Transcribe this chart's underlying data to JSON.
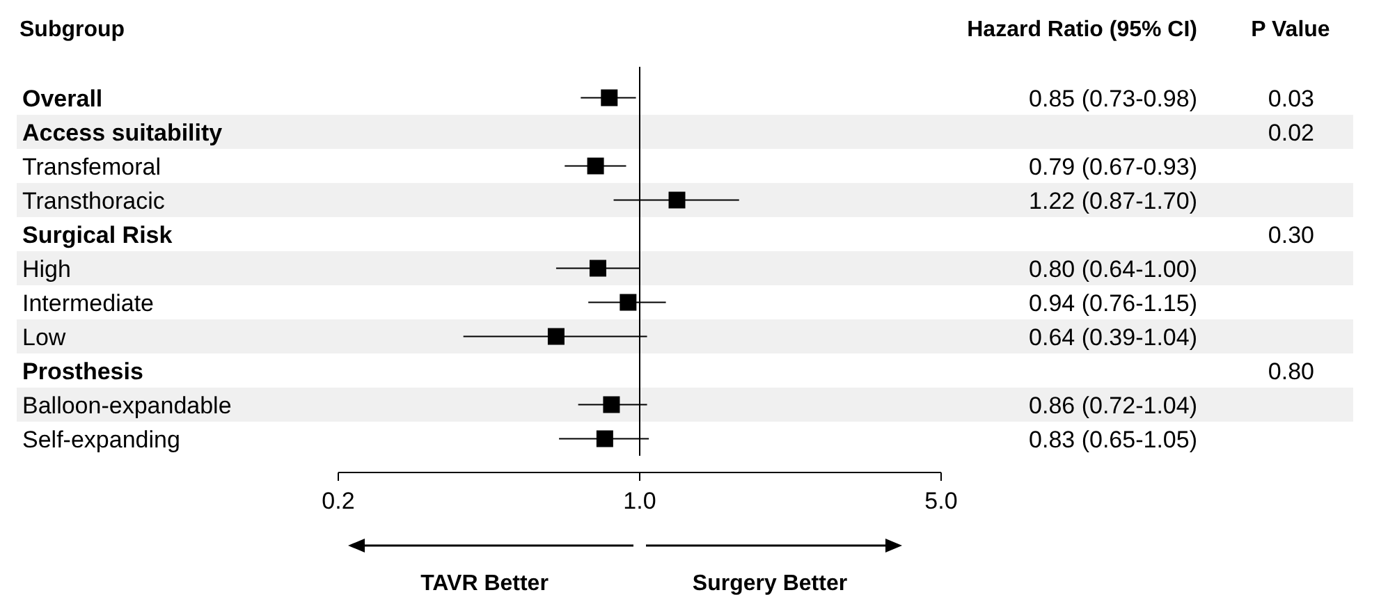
{
  "chart_data": {
    "type": "scatter",
    "orientation": "horizontal",
    "log": "x",
    "marker": "square",
    "categories": [
      "Overall",
      "Access suitability",
      "Transfemoral",
      "Transthoracic",
      "Surgical Risk",
      "High",
      "Intermediate",
      "Low",
      "Prosthesis",
      "Balloon-expandable",
      "Self-expanding"
    ],
    "series": [
      {
        "color": "#000000",
        "values": [
          0.85,
          null,
          0.79,
          1.22,
          null,
          0.8,
          0.94,
          0.64,
          null,
          0.86,
          0.83
        ],
        "errors": [
          [
            0.73,
            0.98
          ],
          null,
          [
            0.67,
            0.93
          ],
          [
            0.87,
            1.7
          ],
          null,
          [
            0.64,
            1.0
          ],
          [
            0.76,
            1.15
          ],
          [
            0.39,
            1.04
          ],
          null,
          [
            0.72,
            1.04
          ],
          [
            0.65,
            1.05
          ]
        ],
        "value_labels": [
          "0.85 (0.73-0.98)",
          null,
          "0.79 (0.67-0.93)",
          "1.22 (0.87-1.70)",
          null,
          "0.80 (0.64-1.00)",
          "0.94 (0.76-1.15)",
          "0.64 (0.39-1.04)",
          null,
          "0.86 (0.72-1.04)",
          "0.83 (0.65-1.05)"
        ]
      },
      {
        "color": "#000000",
        "values": [
          null,
          null,
          null,
          null,
          null,
          null,
          null,
          null,
          null,
          null,
          null
        ],
        "value_labels": [
          "0.03",
          "0.02",
          null,
          null,
          "0.30",
          null,
          null,
          null,
          "0.80",
          null,
          null
        ]
      }
    ],
    "xlim": [
      0.2,
      5.0
    ],
    "xticks": [
      {
        "value": 0.2,
        "label": "0.2"
      },
      {
        "value": 1,
        "label": "1.0"
      },
      {
        "value": 5,
        "label": "5.0"
      }
    ],
    "ref_lines": [
      {
        "axis": "x",
        "value": 1,
        "color": "#000000"
      }
    ],
    "ylabel": "Subgroup",
    "annotations": [
      "Hazard Ratio (95% CI)",
      "P Value",
      "TAVR Better",
      "Surgery Better"
    ]
  }
}
